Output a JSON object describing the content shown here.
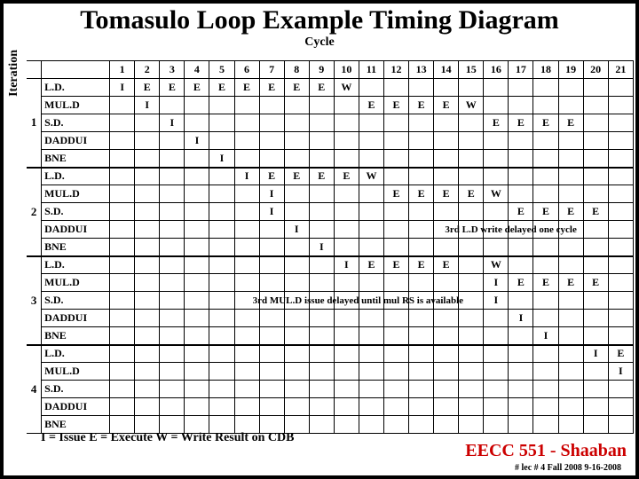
{
  "title": "Tomasulo Loop Example Timing Diagram",
  "cycle_header": "Cycle",
  "iteration_header": "Iteration",
  "legend": "I = Issue        E  = Execute         W = Write Result on CDB",
  "footer_course": "EECC 551 - Shaaban",
  "footer_meta": "#  lec # 4  Fall 2008   9-16-2008",
  "notes": {
    "note1": "3rd L.D write delayed one cycle",
    "note2": "3rd MUL.D issue delayed until mul RS is available"
  },
  "columns": [
    "1",
    "2",
    "3",
    "4",
    "5",
    "6",
    "7",
    "8",
    "9",
    "10",
    "11",
    "12",
    "13",
    "14",
    "15",
    "16",
    "17",
    "18",
    "19",
    "20",
    "21"
  ],
  "iterations": [
    {
      "label": "1",
      "instructions": [
        "L.D.",
        "MUL.D",
        "S.D.",
        "DADDUI",
        "BNE"
      ]
    },
    {
      "label": "2",
      "instructions": [
        "L.D.",
        "MUL.D",
        "S.D.",
        "DADDUI",
        "BNE"
      ]
    },
    {
      "label": "3",
      "instructions": [
        "L.D.",
        "MUL.D",
        "S.D.",
        "DADDUI",
        "BNE"
      ]
    },
    {
      "label": "4",
      "instructions": [
        "L.D.",
        "MUL.D",
        "S.D.",
        "DADDUI",
        "BNE"
      ]
    }
  ],
  "cells": {
    "r0": {
      "1": "I",
      "2": "E",
      "3": "E",
      "4": "E",
      "5": "E",
      "6": "E",
      "7": "E",
      "8": "E",
      "9": "E",
      "10": "W"
    },
    "r1": {
      "2": "I",
      "11": "E",
      "12": "E",
      "13": "E",
      "14": "E",
      "15": "W"
    },
    "r2": {
      "3": "I",
      "16": "E",
      "17": "E",
      "18": "E",
      "19": "E"
    },
    "r3": {
      "4": "I"
    },
    "r4": {
      "5": "I"
    },
    "r5": {
      "6": "I",
      "7": "E",
      "8": "E",
      "9": "E",
      "10": "E",
      "11": "W"
    },
    "r6": {
      "7": "I",
      "12": "E",
      "13": "E",
      "14": "E",
      "15": "E",
      "16": "W"
    },
    "r7": {
      "7": "I",
      "17": "E",
      "18": "E",
      "19": "E",
      "20": "E"
    },
    "r8": {
      "8": "I"
    },
    "r9": {
      "9": "I"
    },
    "r10": {
      "10": "I",
      "11": "E",
      "12": "E",
      "13": "E",
      "14": "E",
      "16": "W"
    },
    "r11": {
      "16": "I",
      "17": "E",
      "18": "E",
      "19": "E",
      "20": "E"
    },
    "r12": {
      "16": "I"
    },
    "r13": {
      "17": "I"
    },
    "r14": {
      "18": "I"
    },
    "r15": {
      "20": "I",
      "21": "E"
    },
    "r16": {
      "21": "I"
    },
    "r17": {},
    "r18": {},
    "r19": {}
  }
}
